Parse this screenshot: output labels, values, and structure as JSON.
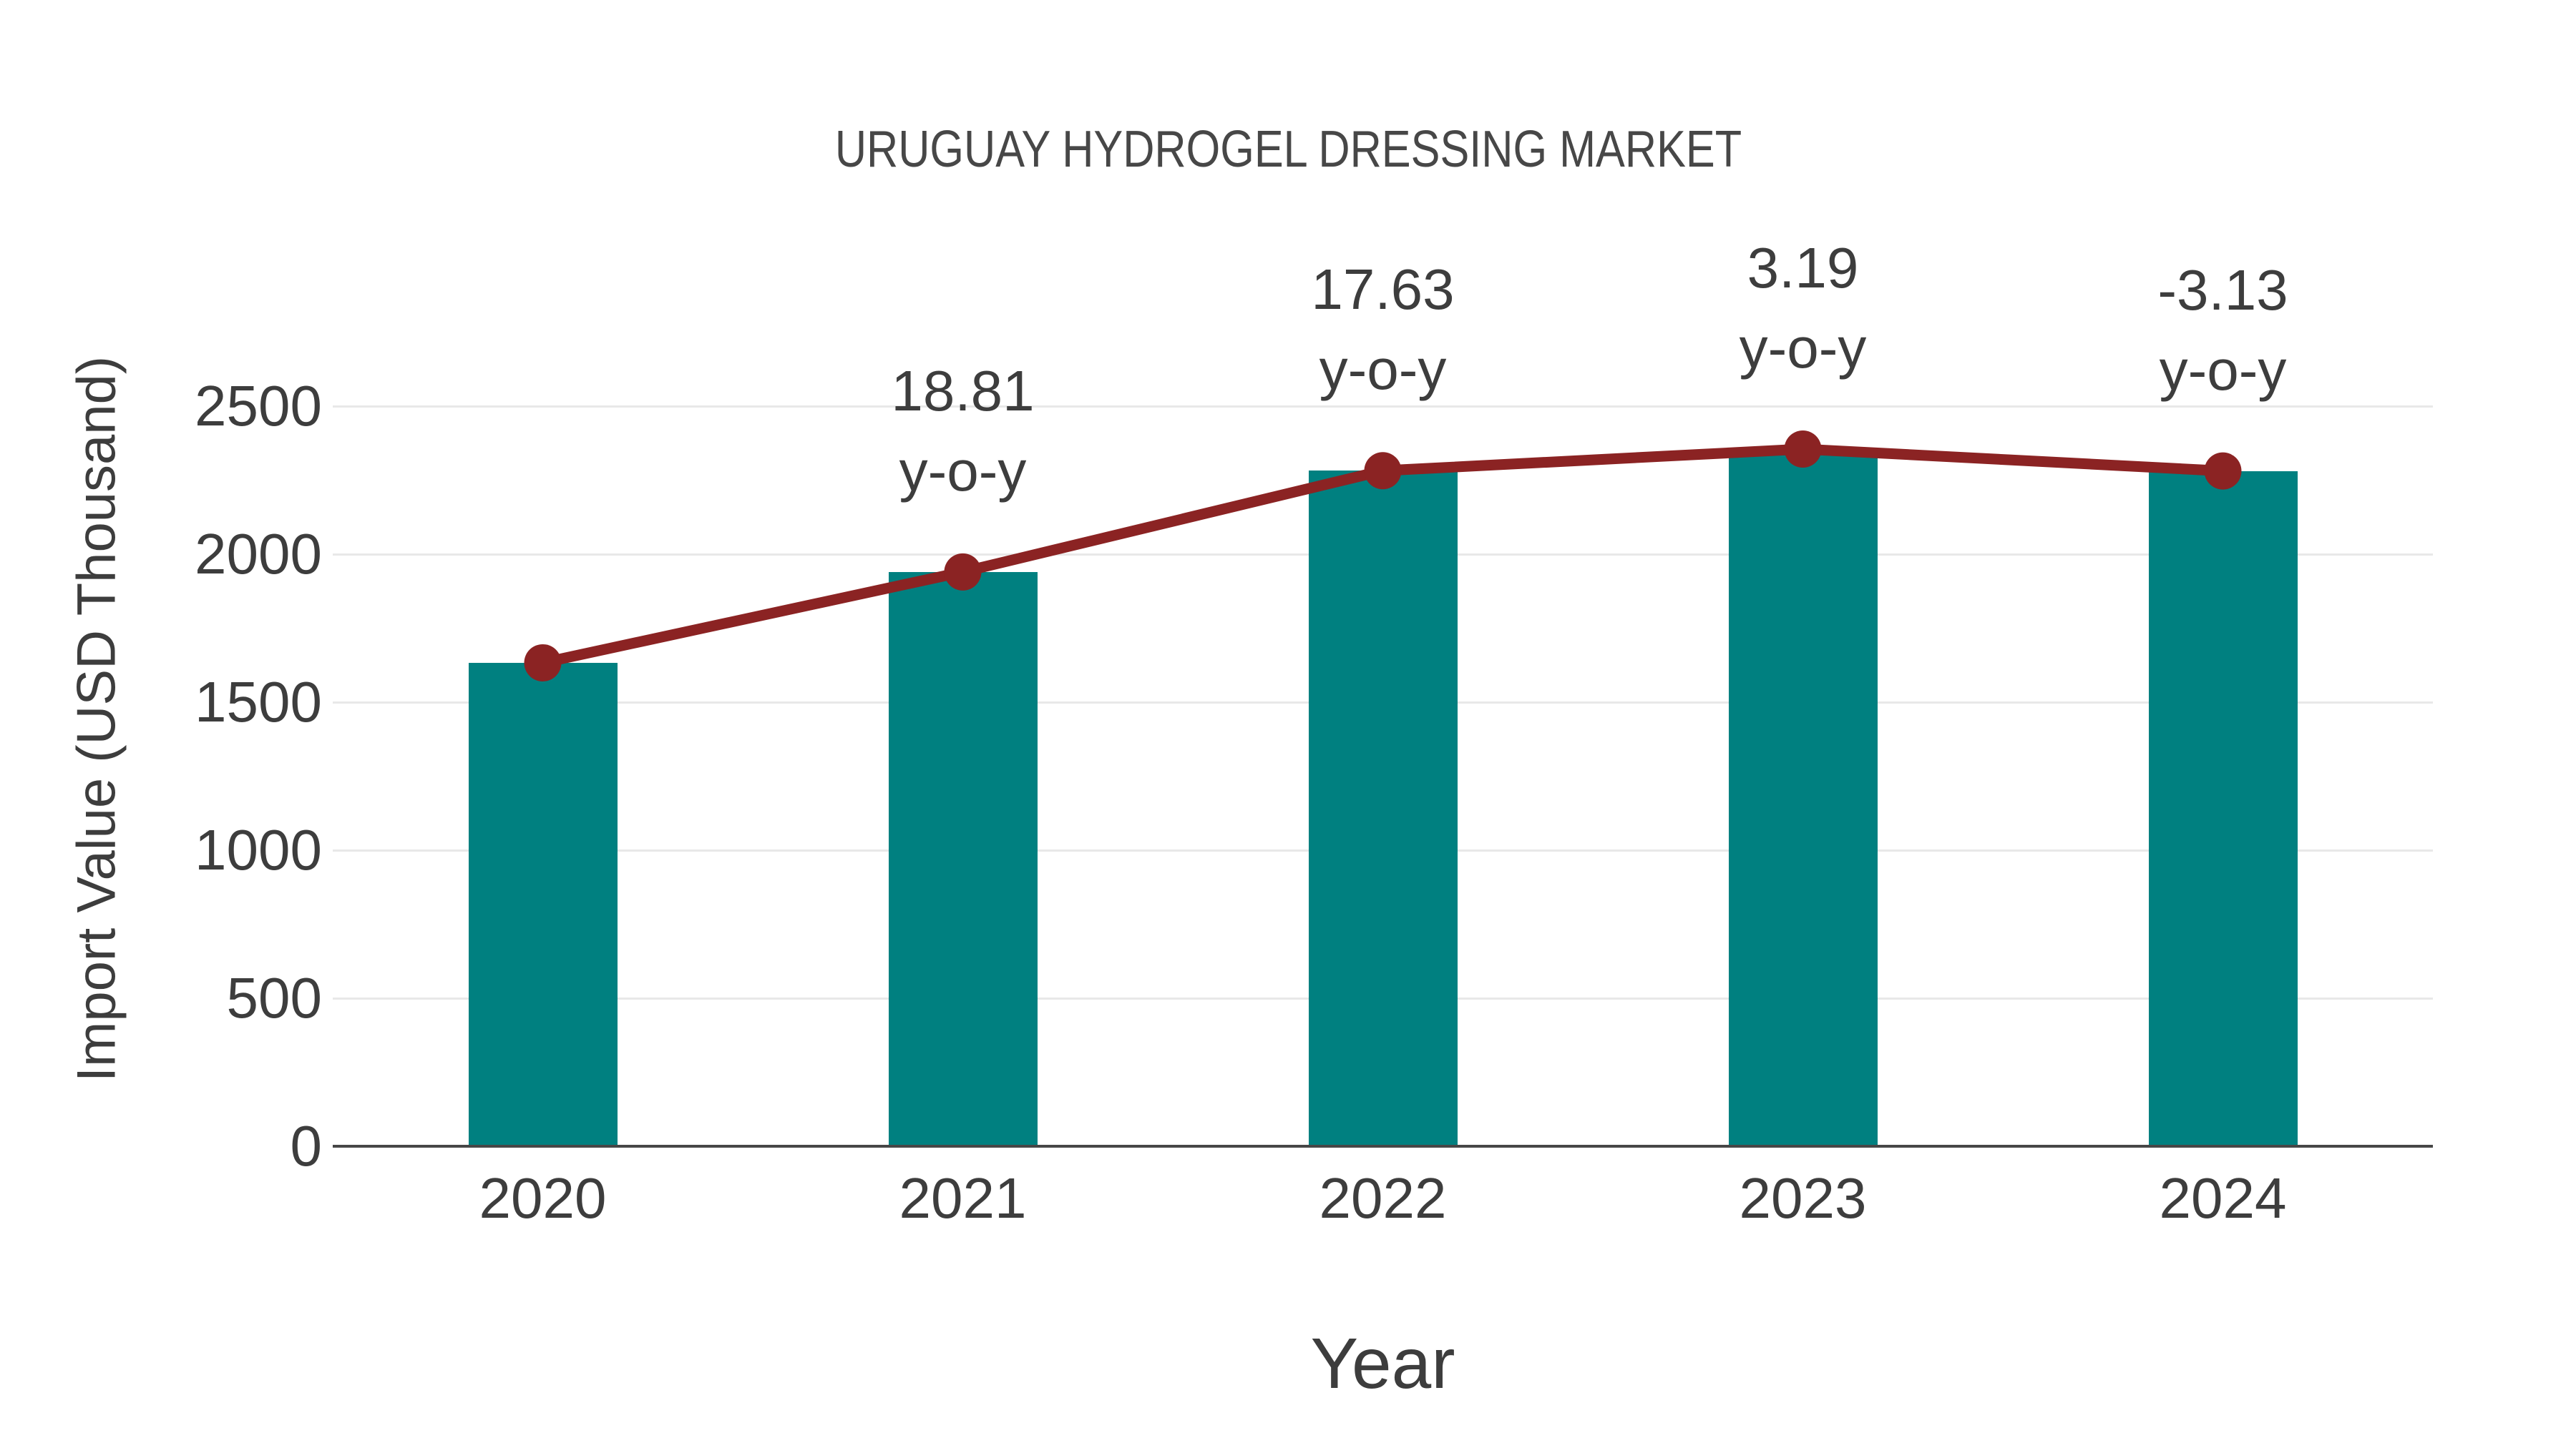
{
  "chart_data": {
    "type": "bar",
    "title": "URUGUAY HYDROGEL DRESSING MARKET",
    "xlabel": "Year",
    "ylabel": "Import Value (USD Thousand)",
    "categories": [
      "2020",
      "2021",
      "2022",
      "2023",
      "2024"
    ],
    "series": [
      {
        "name": "Import Value bars",
        "type": "bar",
        "color": "#008080",
        "values": [
          1633,
          1940,
          2282,
          2355,
          2281
        ]
      },
      {
        "name": "Import Value trend line",
        "type": "line",
        "color": "#8b2323",
        "marker": "circle",
        "values": [
          1633,
          1940,
          2282,
          2355,
          2281
        ]
      }
    ],
    "annotations": [
      {
        "category": "2021",
        "lines": [
          "18.81",
          "y-o-y"
        ]
      },
      {
        "category": "2022",
        "lines": [
          "17.63",
          "y-o-y"
        ]
      },
      {
        "category": "2023",
        "lines": [
          "3.19",
          "y-o-y"
        ]
      },
      {
        "category": "2024",
        "lines": [
          "-3.13",
          "y-o-y"
        ]
      }
    ],
    "yticks": [
      0,
      500,
      1000,
      1500,
      2000,
      2500
    ],
    "ylim": [
      0,
      2500
    ],
    "grid": true,
    "legend_position": "none",
    "background_color": "#ffffff",
    "axis_color": "#474747",
    "grid_color": "#e8e8e8",
    "text_color": "#3d3d3d"
  }
}
